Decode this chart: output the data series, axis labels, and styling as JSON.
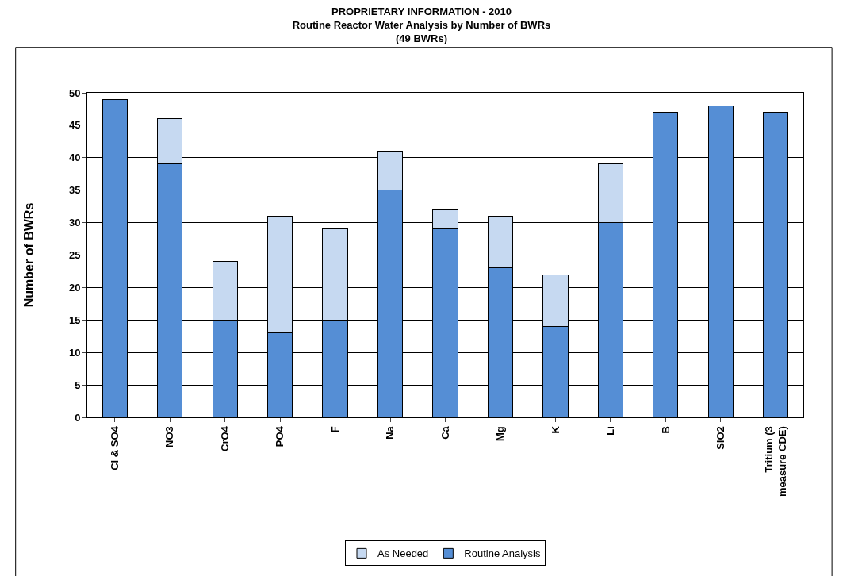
{
  "chart_data": {
    "type": "bar",
    "stacked": true,
    "title": "PROPRIETARY INFORMATION - 2010\nRoutine Reactor Water Analysis by Number of BWRs\n(49 BWRs)",
    "ylabel": "Number of BWRs",
    "categories": [
      "Cl & SO4",
      "NO3",
      "CrO4",
      "PO4",
      "F",
      "Na",
      "Ca",
      "Mg",
      "K",
      "Li",
      "B",
      "SiO2",
      "Tritium (3 measure CDE)"
    ],
    "series": [
      {
        "name": "Routine Analysis",
        "color": "#558ed5",
        "values": [
          49,
          39,
          15,
          13,
          15,
          35,
          29,
          23,
          14,
          30,
          47,
          48,
          47
        ]
      },
      {
        "name": "As Needed",
        "color": "#c6d9f1",
        "values": [
          null,
          7,
          9,
          18,
          14,
          6,
          3,
          8,
          8,
          9,
          null,
          null,
          null
        ]
      }
    ],
    "ylim": [
      0,
      50
    ],
    "yticks": [
      0,
      5,
      10,
      15,
      20,
      25,
      30,
      35,
      40,
      45,
      50
    ],
    "grid": "y",
    "legend": "bottom"
  }
}
